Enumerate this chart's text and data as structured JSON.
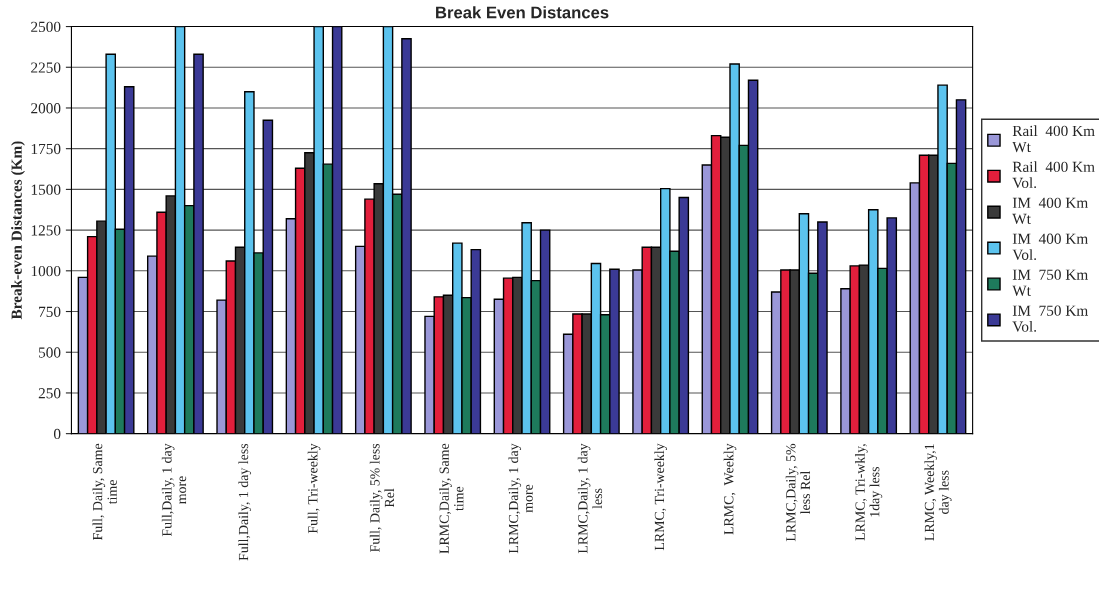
{
  "chart_data": {
    "type": "bar",
    "title": "Break Even Distances",
    "ylabel": "Break-even Distances (Km)",
    "categories": [
      "Full, Daily, Same\ntime",
      "Full,Daily, 1 day\nmore",
      "Full,Daily, 1 day less",
      "Full, Tri-weekly",
      "Full, Daily, 5% less\nRel",
      "LRMC,Daily, Same\ntime",
      "LRMC,Daily, 1 day\nmore",
      "LRMC,Daily, 1 day\nless",
      "LRMC, Tri-weekly",
      "LRMC,  Weekly",
      "LRMC,Daily, 5%\nless Rel",
      "LRMC, Tri-wkly,\n1day less",
      "LRMC, Weekly,1\nday less"
    ],
    "series": [
      {
        "name": "Rail  400 Km\nWt",
        "color": "#9a97d8",
        "values": [
          960,
          1090,
          820,
          1320,
          1150,
          720,
          825,
          610,
          1005,
          1650,
          870,
          890,
          1540
        ]
      },
      {
        "name": "Rail  400 Km\nVol.",
        "color": "#e21f3c",
        "values": [
          1210,
          1360,
          1060,
          1630,
          1440,
          840,
          955,
          735,
          1145,
          1830,
          1005,
          1030,
          1710
        ]
      },
      {
        "name": "IM  400 Km\nWt",
        "color": "#3a3a3a",
        "values": [
          1305,
          1460,
          1145,
          1725,
          1535,
          850,
          960,
          735,
          1145,
          1820,
          1005,
          1035,
          1710
        ]
      },
      {
        "name": "IM  400 Km\nVol.",
        "color": "#5cc3ee",
        "values": [
          2330,
          2500,
          2100,
          2500,
          2500,
          1170,
          1295,
          1045,
          1505,
          2270,
          1350,
          1375,
          2140
        ]
      },
      {
        "name": "IM  750 Km\nWt",
        "color": "#1e7a5c",
        "values": [
          1255,
          1400,
          1110,
          1655,
          1470,
          835,
          940,
          730,
          1120,
          1770,
          985,
          1015,
          1660
        ]
      },
      {
        "name": "IM  750 Km\nVol.",
        "color": "#3b3a96",
        "values": [
          2130,
          2330,
          1925,
          2500,
          2425,
          1130,
          1250,
          1010,
          1450,
          2170,
          1300,
          1325,
          2050
        ]
      }
    ],
    "ylim": [
      0,
      2500
    ],
    "yticks": [
      0,
      250,
      500,
      750,
      1000,
      1250,
      1500,
      1750,
      2000,
      2250,
      2500
    ],
    "grid": "y",
    "legend": "right"
  }
}
